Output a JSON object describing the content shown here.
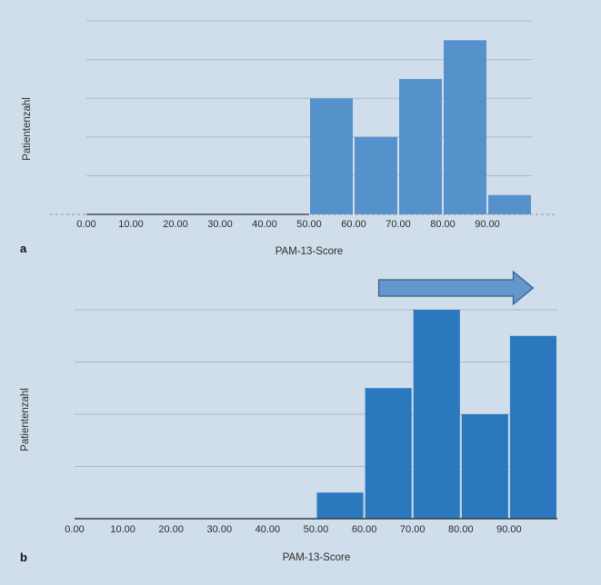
{
  "chart_data": [
    {
      "panel_label": "a",
      "type": "bar",
      "xlabel": "PAM-13-Score",
      "ylabel": "Patientenzahl",
      "x_ticks": [
        "0.00",
        "10.00",
        "20.00",
        "30.00",
        "40.00",
        "50.00",
        "60.00",
        "70.00",
        "80.00",
        "90.00"
      ],
      "xlim": [
        0,
        100
      ],
      "ylim": [
        0,
        5
      ],
      "grid": true,
      "bar_color": "#5592cc",
      "bins": [
        {
          "from": 50,
          "to": 60,
          "value": 3
        },
        {
          "from": 60,
          "to": 70,
          "value": 2
        },
        {
          "from": 70,
          "to": 80,
          "value": 3.5
        },
        {
          "from": 80,
          "to": 90,
          "value": 4.5
        },
        {
          "from": 90,
          "to": 100,
          "value": 0.5
        }
      ]
    },
    {
      "panel_label": "b",
      "type": "bar",
      "xlabel": "PAM-13-Score",
      "ylabel": "Patientenzahl",
      "x_ticks": [
        "0.00",
        "10.00",
        "20.00",
        "30.00",
        "40.00",
        "50.00",
        "60.00",
        "70.00",
        "80.00",
        "90.00"
      ],
      "xlim": [
        0,
        100
      ],
      "ylim": [
        0,
        4
      ],
      "grid": true,
      "bar_color": "#2b78bf",
      "arrow": {
        "from": 63,
        "to": 95,
        "color": "#6296cc",
        "direction": "right"
      },
      "bins": [
        {
          "from": 50,
          "to": 60,
          "value": 0.5
        },
        {
          "from": 60,
          "to": 70,
          "value": 2.5
        },
        {
          "from": 70,
          "to": 80,
          "value": 4
        },
        {
          "from": 80,
          "to": 90,
          "value": 2
        },
        {
          "from": 90,
          "to": 100,
          "value": 3.5
        }
      ]
    }
  ]
}
